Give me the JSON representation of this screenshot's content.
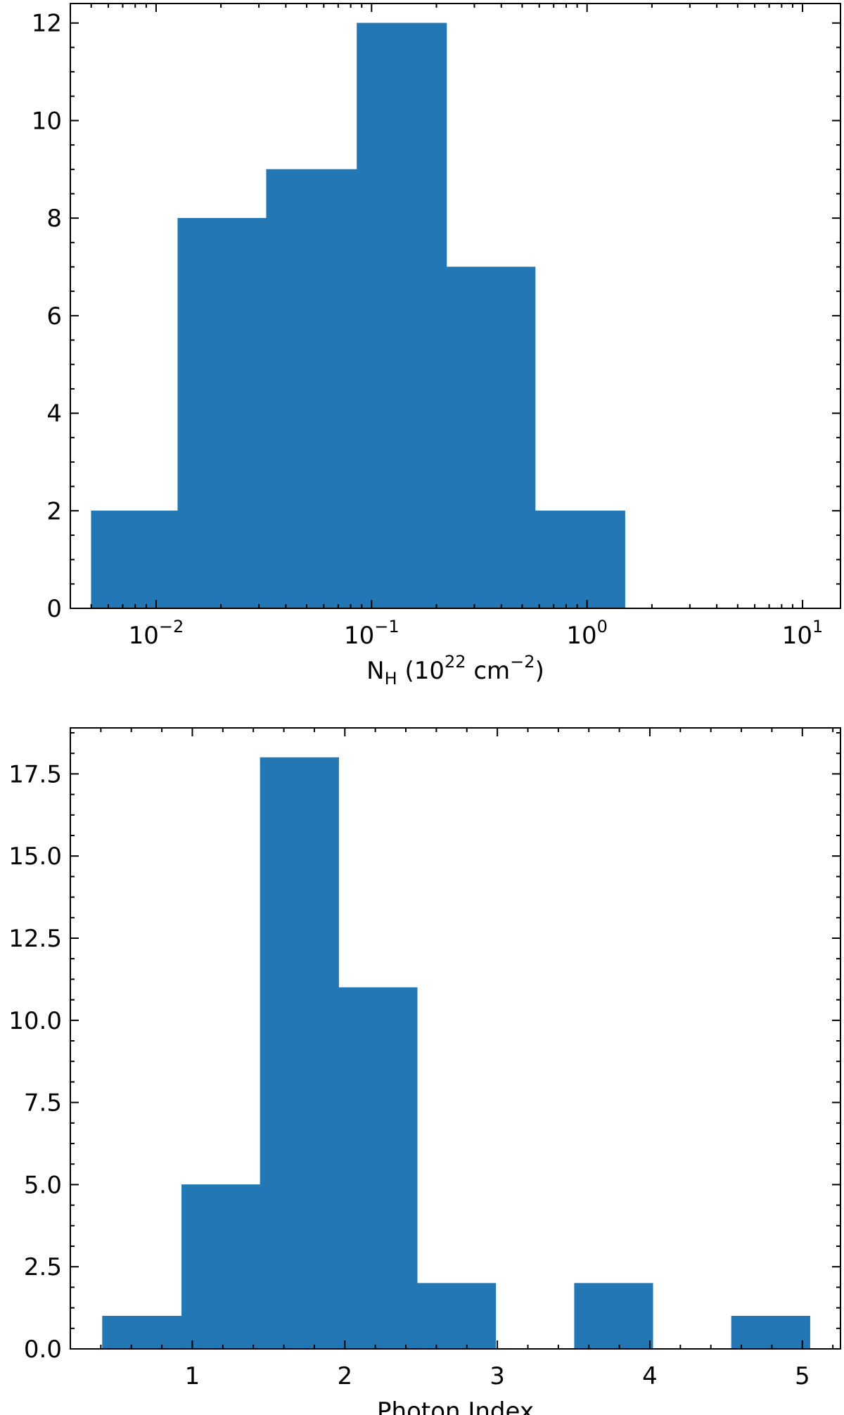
{
  "chart_data": [
    {
      "type": "bar",
      "subtype": "histogram",
      "xscale": "log",
      "xlabel": {
        "base": "N",
        "sub": "H",
        "rest": " (10",
        "sup1": "22",
        "rest2": " cm",
        "sup2": "−2",
        "end": ")"
      },
      "ylabel": "",
      "xlim": [
        0.004,
        15.0
      ],
      "ylim": [
        0,
        12.4
      ],
      "bins": [
        {
          "x0": 0.005,
          "x1": 0.0126,
          "count": 2
        },
        {
          "x0": 0.0126,
          "x1": 0.0325,
          "count": 8
        },
        {
          "x0": 0.0325,
          "x1": 0.0855,
          "count": 9
        },
        {
          "x0": 0.0855,
          "x1": 0.223,
          "count": 12
        },
        {
          "x0": 0.223,
          "x1": 0.575,
          "count": 7
        },
        {
          "x0": 0.575,
          "x1": 1.5,
          "count": 2
        }
      ],
      "xticks": [
        {
          "value": 0.01,
          "mantissa": "10",
          "exp": "−2"
        },
        {
          "value": 0.1,
          "mantissa": "10",
          "exp": "−1"
        },
        {
          "value": 1,
          "mantissa": "10",
          "exp": "0"
        },
        {
          "value": 10,
          "mantissa": "10",
          "exp": "1"
        }
      ],
      "yticks": [
        {
          "value": 0,
          "label": "0"
        },
        {
          "value": 2,
          "label": "2"
        },
        {
          "value": 4,
          "label": "4"
        },
        {
          "value": 6,
          "label": "6"
        },
        {
          "value": 8,
          "label": "8"
        },
        {
          "value": 10,
          "label": "10"
        },
        {
          "value": 12,
          "label": "12"
        }
      ],
      "bar_color": "#2277b4",
      "grid": false
    },
    {
      "type": "bar",
      "subtype": "histogram",
      "xscale": "linear",
      "xlabel": "Photon Index",
      "ylabel": "",
      "xlim": [
        0.2,
        5.25
      ],
      "ylim": [
        0,
        18.9
      ],
      "bins": [
        {
          "x0": 0.41,
          "x1": 0.93,
          "count": 1
        },
        {
          "x0": 0.93,
          "x1": 1.445,
          "count": 5
        },
        {
          "x0": 1.445,
          "x1": 1.96,
          "count": 18
        },
        {
          "x0": 1.96,
          "x1": 2.475,
          "count": 11
        },
        {
          "x0": 2.475,
          "x1": 2.99,
          "count": 2
        },
        {
          "x0": 2.99,
          "x1": 3.505,
          "count": 0
        },
        {
          "x0": 3.505,
          "x1": 4.02,
          "count": 2
        },
        {
          "x0": 4.02,
          "x1": 4.535,
          "count": 0
        },
        {
          "x0": 4.535,
          "x1": 5.05,
          "count": 1
        }
      ],
      "xticks": [
        {
          "value": 1,
          "label": "1"
        },
        {
          "value": 2,
          "label": "2"
        },
        {
          "value": 3,
          "label": "3"
        },
        {
          "value": 4,
          "label": "4"
        },
        {
          "value": 5,
          "label": "5"
        }
      ],
      "yticks": [
        {
          "value": 0,
          "label": "0.0"
        },
        {
          "value": 2.5,
          "label": "2.5"
        },
        {
          "value": 5,
          "label": "5.0"
        },
        {
          "value": 7.5,
          "label": "7.5"
        },
        {
          "value": 10,
          "label": "10.0"
        },
        {
          "value": 12.5,
          "label": "12.5"
        },
        {
          "value": 15,
          "label": "15.0"
        },
        {
          "value": 17.5,
          "label": "17.5"
        }
      ],
      "bar_color": "#2277b4",
      "grid": false
    }
  ]
}
